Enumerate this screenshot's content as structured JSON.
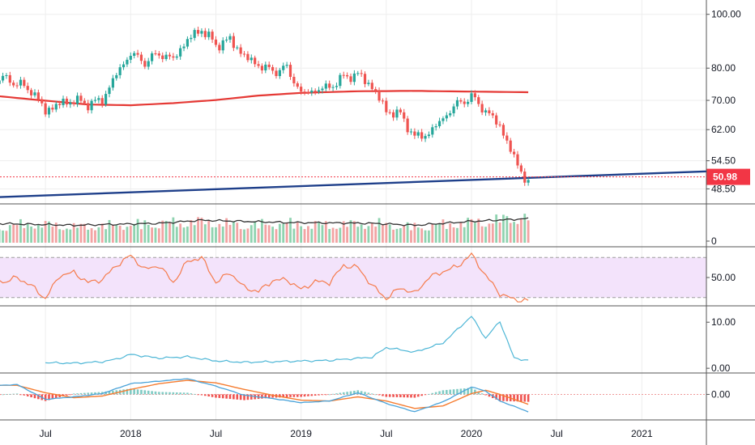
{
  "colors": {
    "up": "#26a69a",
    "down": "#ef5350",
    "ma": "#e53935",
    "trend": "#1e3f8a",
    "rsi": "#f57c4d",
    "rsi_band": "#f3e3fb",
    "indicator": "#4db6d6",
    "macd": "#4aa3d9",
    "signal": "#f57c30",
    "vol_line": "#333333",
    "grid": "#eeeeee",
    "separator": "#555555",
    "last_price": "#f23645"
  },
  "chart_data": [
    {
      "type": "candlestick",
      "pane": "price",
      "y_scale": "log",
      "ylim": [
        46.5,
        104
      ],
      "y_ticks": [
        "100.00",
        "80.00",
        "70.00",
        "62.00",
        "54.50",
        "48.50"
      ],
      "x_ticks": [
        "Jul",
        "2018",
        "Jul",
        "2019",
        "Jul",
        "2020",
        "Jul",
        "2021"
      ],
      "x_range": [
        "2017-03",
        "2021-06"
      ],
      "close_path": [
        [
          "2017-03",
          74
        ],
        [
          "2017-04",
          77
        ],
        [
          "2017-05",
          75
        ],
        [
          "2017-06",
          73
        ],
        [
          "2017-07",
          67
        ],
        [
          "2017-08",
          69
        ],
        [
          "2017-09",
          70
        ],
        [
          "2017-10",
          69
        ],
        [
          "2017-11",
          70
        ],
        [
          "2017-12",
          78
        ],
        [
          "2018-01",
          85
        ],
        [
          "2018-02",
          82
        ],
        [
          "2018-03",
          85
        ],
        [
          "2018-04",
          83
        ],
        [
          "2018-05",
          90
        ],
        [
          "2018-06",
          94
        ],
        [
          "2018-07",
          88
        ],
        [
          "2018-08",
          90
        ],
        [
          "2018-09",
          84
        ],
        [
          "2018-10",
          81
        ],
        [
          "2018-11",
          79
        ],
        [
          "2018-12",
          80
        ],
        [
          "2019-01",
          72
        ],
        [
          "2019-02",
          73
        ],
        [
          "2019-03",
          74
        ],
        [
          "2019-04",
          77
        ],
        [
          "2019-05",
          78
        ],
        [
          "2019-06",
          74
        ],
        [
          "2019-07",
          67
        ],
        [
          "2019-08",
          66
        ],
        [
          "2019-09",
          60
        ],
        [
          "2019-10",
          61
        ],
        [
          "2019-11",
          65
        ],
        [
          "2019-12",
          69
        ],
        [
          "2020-01",
          71
        ],
        [
          "2020-02",
          67
        ],
        [
          "2020-03",
          63
        ],
        [
          "2020-04",
          55
        ],
        [
          "2020-05",
          49.5
        ]
      ],
      "moving_average": [
        [
          "2017-03",
          71.5
        ],
        [
          "2017-06",
          70.3
        ],
        [
          "2017-10",
          68.8
        ],
        [
          "2018-01",
          68.6
        ],
        [
          "2018-04",
          69.2
        ],
        [
          "2018-07",
          70.1
        ],
        [
          "2018-10",
          71.4
        ],
        [
          "2019-01",
          72.2
        ],
        [
          "2019-05",
          72.7
        ],
        [
          "2019-09",
          72.8
        ],
        [
          "2020-01",
          72.6
        ],
        [
          "2020-05",
          72.4
        ]
      ],
      "trendline": [
        [
          "2017-03",
          46.8
        ],
        [
          "2021-06",
          52.2
        ]
      ],
      "last_price": 50.98,
      "last_price_label": "50.98"
    },
    {
      "type": "bar",
      "pane": "volume",
      "y_ticks": [
        "0"
      ],
      "volume_path": [
        [
          "2017-03",
          0.4
        ],
        [
          "2017-06",
          0.55
        ],
        [
          "2017-09",
          0.45
        ],
        [
          "2017-12",
          0.5
        ],
        [
          "2018-03",
          0.55
        ],
        [
          "2018-06",
          0.6
        ],
        [
          "2018-09",
          0.5
        ],
        [
          "2018-12",
          0.55
        ],
        [
          "2019-03",
          0.5
        ],
        [
          "2019-06",
          0.55
        ],
        [
          "2019-09",
          0.45
        ],
        [
          "2019-12",
          0.55
        ],
        [
          "2020-03",
          0.65
        ],
        [
          "2020-05",
          0.75
        ]
      ],
      "volume_ma_path": [
        [
          "2017-03",
          0.5
        ],
        [
          "2017-09",
          0.45
        ],
        [
          "2018-03",
          0.5
        ],
        [
          "2018-06",
          0.58
        ],
        [
          "2018-12",
          0.52
        ],
        [
          "2019-06",
          0.5
        ],
        [
          "2019-09",
          0.45
        ],
        [
          "2020-01",
          0.55
        ],
        [
          "2020-05",
          0.62
        ]
      ]
    },
    {
      "type": "line",
      "pane": "rsi",
      "y_ticks": [
        "50.00"
      ],
      "band": [
        30,
        70
      ],
      "ylim": [
        25,
        75
      ],
      "values": [
        [
          "2017-03",
          60
        ],
        [
          "2017-04",
          45
        ],
        [
          "2017-05",
          50
        ],
        [
          "2017-06",
          42
        ],
        [
          "2017-07",
          29
        ],
        [
          "2017-08",
          52
        ],
        [
          "2017-09",
          55
        ],
        [
          "2017-10",
          45
        ],
        [
          "2017-11",
          48
        ],
        [
          "2017-12",
          62
        ],
        [
          "2018-01",
          72
        ],
        [
          "2018-02",
          58
        ],
        [
          "2018-03",
          62
        ],
        [
          "2018-04",
          45
        ],
        [
          "2018-05",
          66
        ],
        [
          "2018-06",
          70
        ],
        [
          "2018-07",
          45
        ],
        [
          "2018-08",
          55
        ],
        [
          "2018-09",
          40
        ],
        [
          "2018-10",
          36
        ],
        [
          "2018-11",
          47
        ],
        [
          "2018-12",
          48
        ],
        [
          "2019-01",
          38
        ],
        [
          "2019-02",
          46
        ],
        [
          "2019-03",
          45
        ],
        [
          "2019-04",
          62
        ],
        [
          "2019-05",
          60
        ],
        [
          "2019-06",
          42
        ],
        [
          "2019-07",
          29
        ],
        [
          "2019-08",
          40
        ],
        [
          "2019-09",
          34
        ],
        [
          "2019-10",
          50
        ],
        [
          "2019-11",
          56
        ],
        [
          "2019-12",
          61
        ],
        [
          "2020-01",
          73
        ],
        [
          "2020-02",
          52
        ],
        [
          "2020-03",
          34
        ],
        [
          "2020-04",
          28
        ],
        [
          "2020-05",
          27
        ]
      ]
    },
    {
      "type": "line",
      "pane": "indicator",
      "y_ticks": [
        "10.00",
        "0.00"
      ],
      "ylim": [
        -0.5,
        12.5
      ],
      "values": [
        [
          "2017-07",
          1.2
        ],
        [
          "2017-09",
          1.1
        ],
        [
          "2017-11",
          1.4
        ],
        [
          "2017-12",
          2.0
        ],
        [
          "2018-01",
          3.0
        ],
        [
          "2018-03",
          2.2
        ],
        [
          "2018-05",
          2.5
        ],
        [
          "2018-07",
          1.6
        ],
        [
          "2018-09",
          1.3
        ],
        [
          "2018-12",
          1.5
        ],
        [
          "2019-03",
          1.7
        ],
        [
          "2019-06",
          2.4
        ],
        [
          "2019-07",
          4.5
        ],
        [
          "2019-09",
          3.5
        ],
        [
          "2019-11",
          5.5
        ],
        [
          "2020-01",
          11.3
        ],
        [
          "2020-02",
          6.5
        ],
        [
          "2020-03",
          10.2
        ],
        [
          "2020-04",
          2.2
        ],
        [
          "2020-05",
          1.7
        ]
      ]
    },
    {
      "type": "line",
      "pane": "macd",
      "y_ticks": [
        "0.00"
      ],
      "ylim": [
        -1.4,
        1.1
      ],
      "macd": [
        [
          "2017-03",
          0.5
        ],
        [
          "2017-05",
          0.6
        ],
        [
          "2017-07",
          -0.3
        ],
        [
          "2017-09",
          -0.15
        ],
        [
          "2017-11",
          0.05
        ],
        [
          "2018-01",
          0.65
        ],
        [
          "2018-03",
          0.8
        ],
        [
          "2018-05",
          0.95
        ],
        [
          "2018-07",
          0.5
        ],
        [
          "2018-09",
          -0.05
        ],
        [
          "2018-11",
          -0.25
        ],
        [
          "2019-01",
          -0.5
        ],
        [
          "2019-03",
          -0.4
        ],
        [
          "2019-05",
          0.1
        ],
        [
          "2019-07",
          -0.55
        ],
        [
          "2019-09",
          -1.05
        ],
        [
          "2019-11",
          -0.45
        ],
        [
          "2020-01",
          0.45
        ],
        [
          "2020-02",
          0.2
        ],
        [
          "2020-03",
          -0.4
        ],
        [
          "2020-05",
          -1.05
        ]
      ],
      "signal": [
        [
          "2017-03",
          0.55
        ],
        [
          "2017-05",
          0.55
        ],
        [
          "2017-07",
          0.1
        ],
        [
          "2017-09",
          -0.2
        ],
        [
          "2017-11",
          -0.1
        ],
        [
          "2018-01",
          0.3
        ],
        [
          "2018-03",
          0.65
        ],
        [
          "2018-05",
          0.85
        ],
        [
          "2018-07",
          0.7
        ],
        [
          "2018-09",
          0.3
        ],
        [
          "2018-11",
          -0.05
        ],
        [
          "2019-01",
          -0.35
        ],
        [
          "2019-03",
          -0.4
        ],
        [
          "2019-05",
          -0.15
        ],
        [
          "2019-07",
          -0.4
        ],
        [
          "2019-09",
          -0.85
        ],
        [
          "2019-11",
          -0.7
        ],
        [
          "2020-01",
          0.05
        ],
        [
          "2020-02",
          0.25
        ],
        [
          "2020-03",
          0.0
        ],
        [
          "2020-05",
          -0.6
        ]
      ]
    }
  ]
}
